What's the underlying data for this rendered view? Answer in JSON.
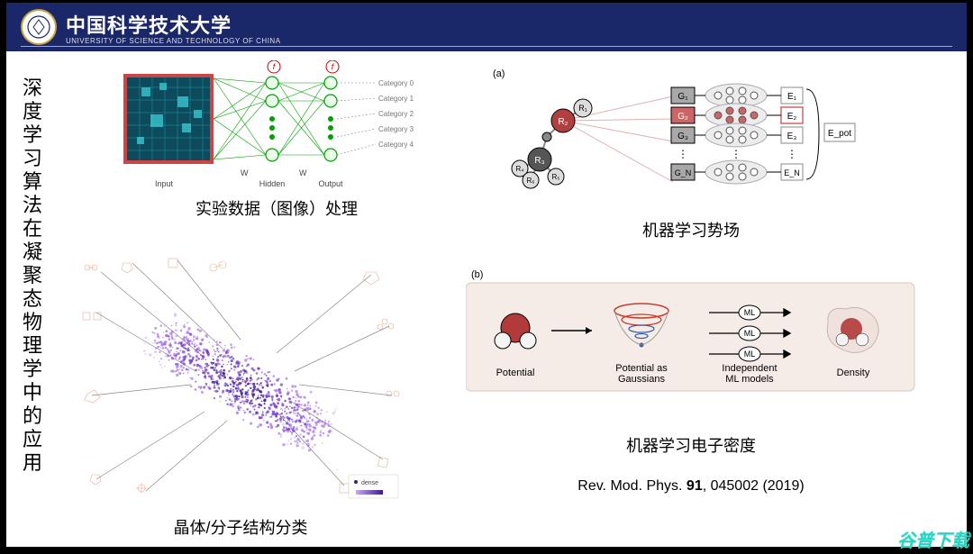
{
  "header": {
    "university_cn": "中国科学技术大学",
    "university_en": "UNIVERSITY OF SCIENCE AND TECHNOLOGY OF CHINA",
    "bg_color": "#1a2768",
    "seal_border": "#c9a23f"
  },
  "title_vertical": "深度学习算法在凝聚态物理学中的应用",
  "panels": {
    "tl": {
      "caption": "实验数据（图像）处理",
      "nn": {
        "layers_label": [
          "Input",
          "Hidden",
          "Output"
        ],
        "weight_label": "W",
        "f_label": "f",
        "categories": [
          "Category 0",
          "Category 1",
          "Category 2",
          "Category 3",
          "Category 4"
        ],
        "image_border_color": "#cc4444",
        "line_color": "#00a000",
        "node_fill": "#eaffea",
        "node_stroke": "#00a000"
      }
    },
    "bl": {
      "caption": "晶体/分子结构分类",
      "scatter_colors": [
        "#3c1a8c",
        "#6a30c0",
        "#9a5be0",
        "#c8a8f0"
      ],
      "node_color": "#d06a3a",
      "line_color": "#888"
    },
    "tr": {
      "caption": "机器学习势场",
      "subfig_label": "(a)",
      "atoms": {
        "labels": [
          "R₁",
          "R₂",
          "R₃",
          "R₄",
          "R₅",
          "R₆"
        ],
        "center_color": "#b04040",
        "neighbor_color": "#555",
        "bond_color": "#888"
      },
      "g_blocks": [
        "G₁",
        "G₂",
        "G₃",
        "G_N"
      ],
      "e_blocks": [
        "E₁",
        "E₂",
        "E₃",
        "E_N"
      ],
      "e_total": "E_pot",
      "g_bg": "#a8a8a8",
      "g_highlight": "#cc6666",
      "nn_node_fill": "#fff",
      "nn_node_highlight": "#cc6666",
      "e_border": "#cc6666",
      "ray_color": "#e0b0b0"
    },
    "br": {
      "caption": "机器学习电子密度",
      "subfig_label": "(b)",
      "box_bg": "#f5ece8",
      "labels": [
        "Potential",
        "Potential as\nGaussians",
        "Independent\nML models",
        "Density"
      ],
      "ml_label": "ML",
      "atom_red": "#b33a3a",
      "atom_white": "#f5f5f5",
      "gauss_colors": [
        "#c83c28",
        "#3a5fa8"
      ],
      "arrow_color": "#000"
    }
  },
  "reference": {
    "journal": "Rev. Mod. Phys. ",
    "volume": "91",
    "rest": ", 045002 (2019)"
  },
  "watermark": "谷普下载"
}
